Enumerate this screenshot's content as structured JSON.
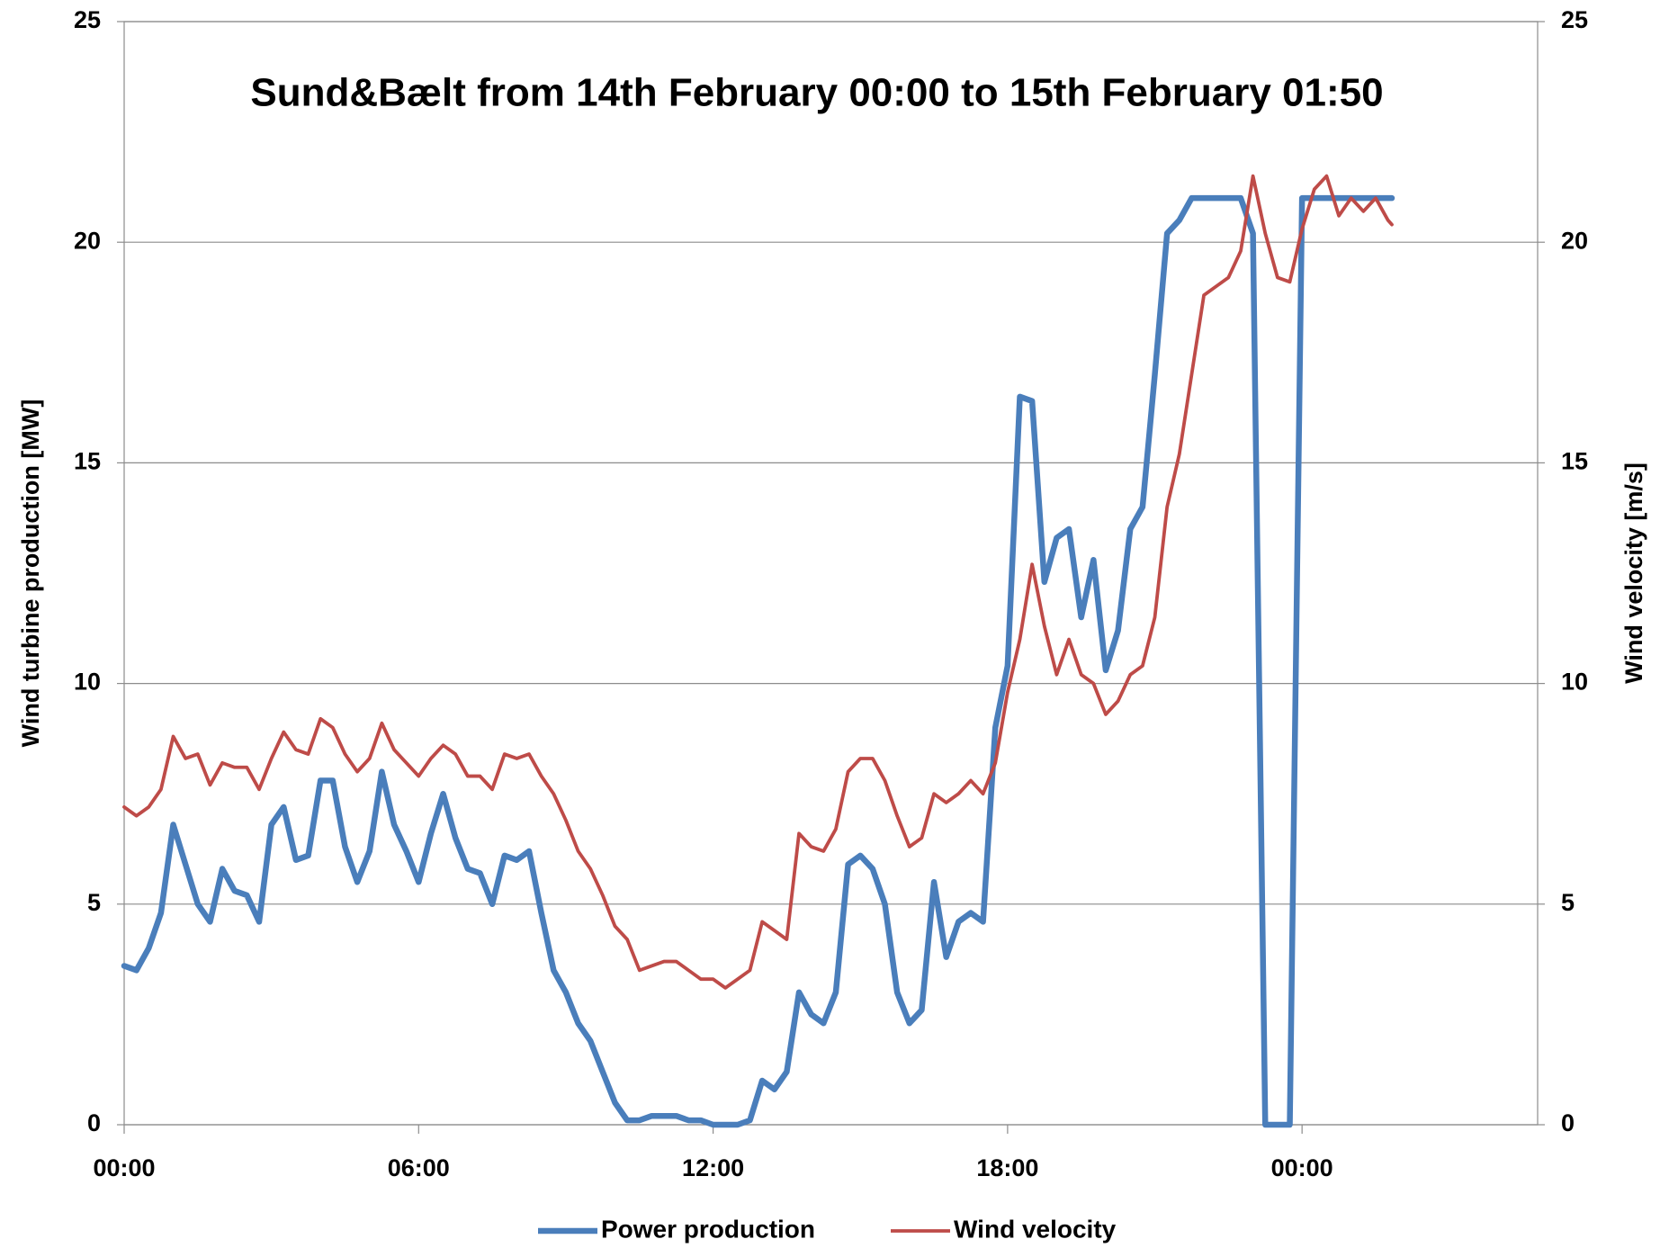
{
  "chart_data": {
    "type": "line",
    "title": "Sund&Bælt  from 14th February 00:00  to  15th February 01:50",
    "y_label": "Wind turbine production [MW]",
    "y2_label": "Wind velocity [m/s]",
    "x": [
      0,
      0.25,
      0.5,
      0.75,
      1,
      1.25,
      1.5,
      1.75,
      2,
      2.25,
      2.5,
      2.75,
      3,
      3.25,
      3.5,
      3.75,
      4,
      4.25,
      4.5,
      4.75,
      5,
      5.25,
      5.5,
      5.75,
      6,
      6.25,
      6.5,
      6.75,
      7,
      7.25,
      7.5,
      7.75,
      8,
      8.25,
      8.5,
      8.75,
      9,
      9.25,
      9.5,
      9.75,
      10,
      10.25,
      10.5,
      10.75,
      11,
      11.25,
      11.5,
      11.75,
      12,
      12.25,
      12.5,
      12.75,
      13,
      13.25,
      13.5,
      13.75,
      14,
      14.25,
      14.5,
      14.75,
      15,
      15.25,
      15.5,
      15.75,
      16,
      16.25,
      16.5,
      16.75,
      17,
      17.25,
      17.5,
      17.75,
      18,
      18.25,
      18.5,
      18.75,
      19,
      19.25,
      19.5,
      19.75,
      20,
      20.25,
      20.5,
      20.75,
      21,
      21.25,
      21.5,
      21.75,
      22,
      22.25,
      22.5,
      22.75,
      23,
      23.25,
      23.5,
      23.75,
      24,
      24.25,
      24.5,
      24.75,
      25,
      25.25,
      25.5,
      25.75,
      25.83
    ],
    "series": [
      {
        "name": "Power production",
        "color": "#4a7ebb",
        "axis": "y",
        "values": [
          3.6,
          3.5,
          4.0,
          4.8,
          6.8,
          5.9,
          5.0,
          4.6,
          5.8,
          5.3,
          5.2,
          4.6,
          6.8,
          7.2,
          6.0,
          6.1,
          7.8,
          7.8,
          6.3,
          5.5,
          6.2,
          8.0,
          6.8,
          6.2,
          5.5,
          6.6,
          7.5,
          6.5,
          5.8,
          5.7,
          5.0,
          6.1,
          6.0,
          6.2,
          4.8,
          3.5,
          3.0,
          2.3,
          1.9,
          1.2,
          0.5,
          0.1,
          0.1,
          0.2,
          0.2,
          0.2,
          0.1,
          0.1,
          0,
          0,
          0,
          0.1,
          1.0,
          0.8,
          1.2,
          3.0,
          2.5,
          2.3,
          3.0,
          5.9,
          6.1,
          5.8,
          5.0,
          3.0,
          2.3,
          2.6,
          5.5,
          3.8,
          4.6,
          4.8,
          4.6,
          9.0,
          10.4,
          16.5,
          16.4,
          12.3,
          13.3,
          13.5,
          11.5,
          12.8,
          10.3,
          11.2,
          13.5,
          14.0,
          17.0,
          20.2,
          20.5,
          21.0,
          21,
          21,
          21,
          21,
          20.2,
          0,
          0,
          0,
          21,
          21,
          21,
          21,
          21,
          21,
          21,
          21,
          21
        ]
      },
      {
        "name": "Wind velocity",
        "color": "#be4b48",
        "axis": "y2",
        "values": [
          7.2,
          7.0,
          7.2,
          7.6,
          8.8,
          8.3,
          8.4,
          7.7,
          8.2,
          8.1,
          8.1,
          7.6,
          8.3,
          8.9,
          8.5,
          8.4,
          9.2,
          9.0,
          8.4,
          8.0,
          8.3,
          9.1,
          8.5,
          8.2,
          7.9,
          8.3,
          8.6,
          8.4,
          7.9,
          7.9,
          7.6,
          8.4,
          8.3,
          8.4,
          7.9,
          7.5,
          6.9,
          6.2,
          5.8,
          5.2,
          4.5,
          4.2,
          3.5,
          3.6,
          3.7,
          3.7,
          3.5,
          3.3,
          3.3,
          3.1,
          3.3,
          3.5,
          4.6,
          4.4,
          4.2,
          6.6,
          6.3,
          6.2,
          6.7,
          8.0,
          8.3,
          8.3,
          7.8,
          7.0,
          6.3,
          6.5,
          7.5,
          7.3,
          7.5,
          7.8,
          7.5,
          8.2,
          9.8,
          11.0,
          12.7,
          11.3,
          10.2,
          11.0,
          10.2,
          10.0,
          9.3,
          9.6,
          10.2,
          10.4,
          11.5,
          14.0,
          15.2,
          17.0,
          18.8,
          19.0,
          19.2,
          19.8,
          21.5,
          20.2,
          19.2,
          19.1,
          20.3,
          21.2,
          21.5,
          20.6,
          21.0,
          20.7,
          21.0,
          20.5,
          20.4
        ]
      }
    ],
    "xlim": [
      0,
      28.8
    ],
    "xticks": [
      {
        "value": 0,
        "label": "00:00"
      },
      {
        "value": 6,
        "label": "06:00"
      },
      {
        "value": 12,
        "label": "12:00"
      },
      {
        "value": 18,
        "label": "18:00"
      },
      {
        "value": 24,
        "label": "00:00"
      }
    ],
    "ylim": [
      0,
      25
    ],
    "yticks": [
      0,
      5,
      10,
      15,
      20,
      25
    ],
    "y2lim": [
      0,
      25
    ],
    "y2ticks": [
      0,
      5,
      10,
      15,
      20,
      25
    ],
    "grid": true,
    "legend": "bottom"
  }
}
